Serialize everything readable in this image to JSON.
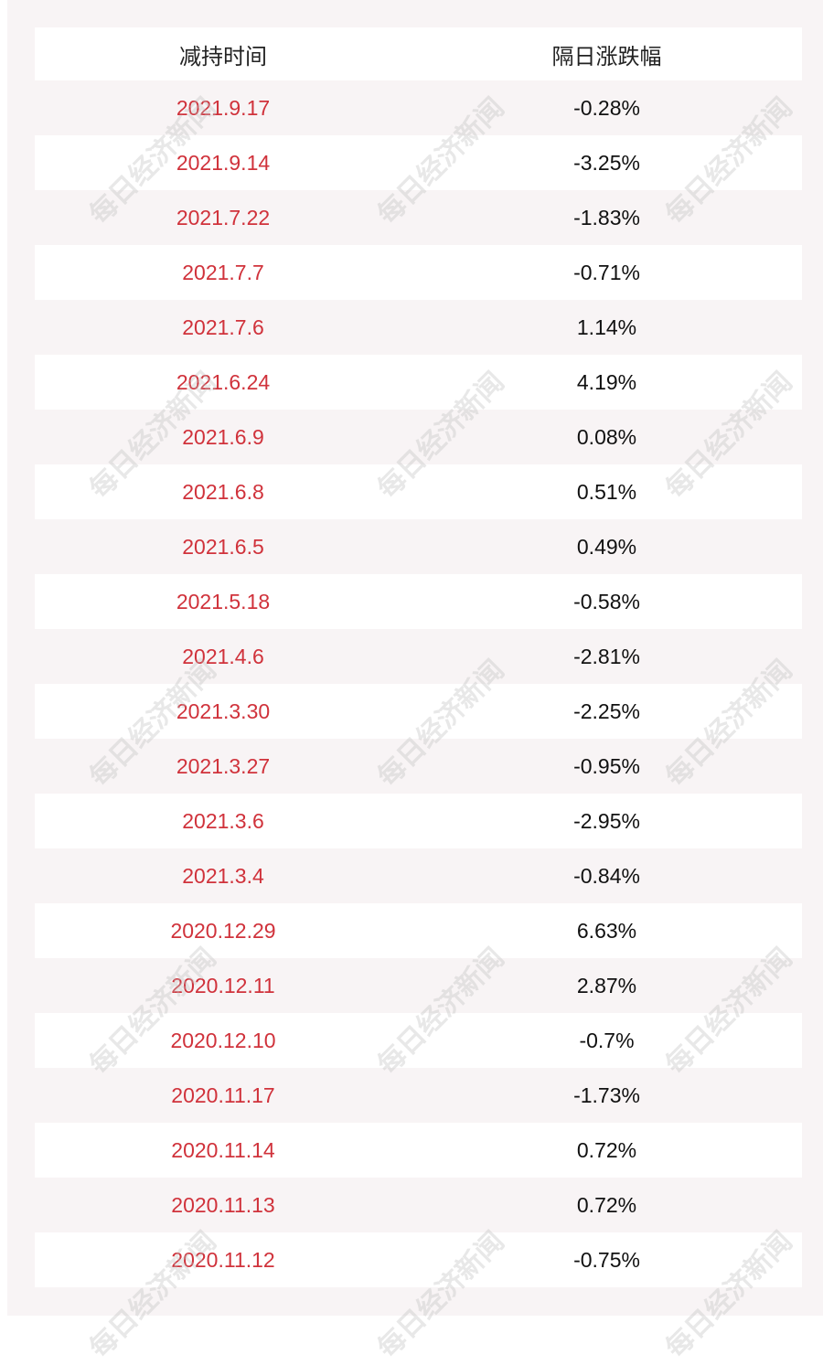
{
  "header": [
    "减持时间",
    "隔日涨跌幅"
  ],
  "watermark": "每日经济新闻",
  "table": {
    "rows": [
      [
        "2021.9.17",
        "-0.28%"
      ],
      [
        "2021.9.14",
        "-3.25%"
      ],
      [
        "2021.7.22",
        "-1.83%"
      ],
      [
        "2021.7.7",
        "-0.71%"
      ],
      [
        "2021.7.6",
        "1.14%"
      ],
      [
        "2021.6.24",
        "4.19%"
      ],
      [
        "2021.6.9",
        "0.08%"
      ],
      [
        "2021.6.8",
        "0.51%"
      ],
      [
        "2021.6.5",
        "0.49%"
      ],
      [
        "2021.5.18",
        "-0.58%"
      ],
      [
        "2021.4.6",
        "-2.81%"
      ],
      [
        "2021.3.30",
        "-2.25%"
      ],
      [
        "2021.3.27",
        "-0.95%"
      ],
      [
        "2021.3.6",
        "-2.95%"
      ],
      [
        "2021.3.4",
        "-0.84%"
      ],
      [
        "2020.12.29",
        "6.63%"
      ],
      [
        "2020.12.11",
        "2.87%"
      ],
      [
        "2020.12.10",
        "-0.7%"
      ],
      [
        "2020.11.17",
        "-1.73%"
      ],
      [
        "2020.11.14",
        "0.72%"
      ],
      [
        "2020.11.13",
        "0.72%"
      ],
      [
        "2020.11.12",
        "-0.75%"
      ]
    ]
  }
}
